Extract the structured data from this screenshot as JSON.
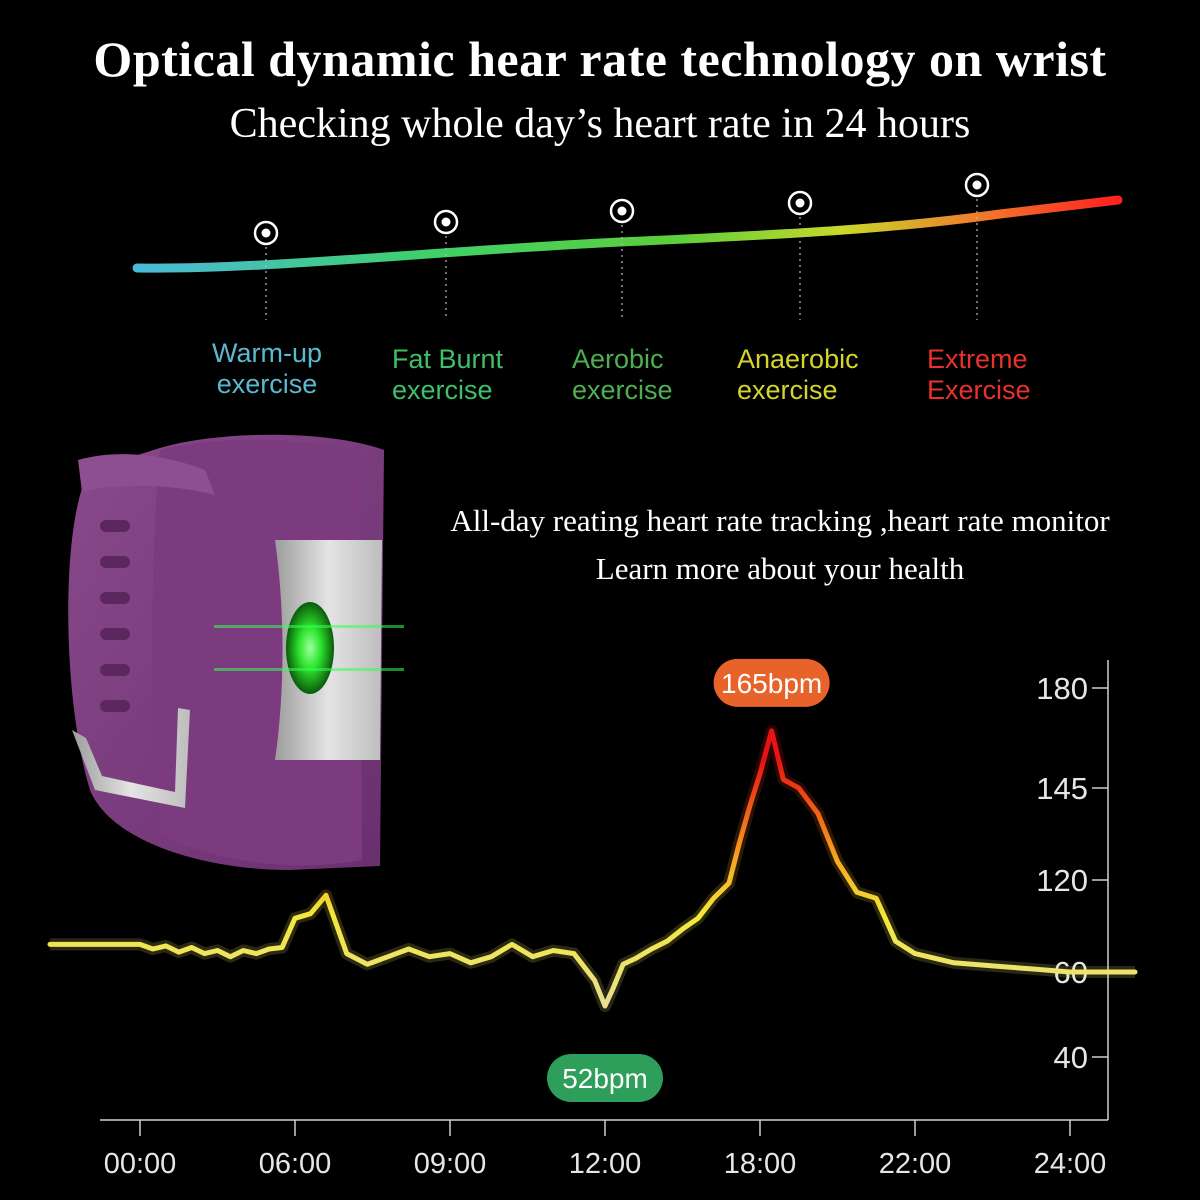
{
  "header": {
    "title": "Optical dynamic hear rate technology on wrist",
    "subtitle": "Checking whole day’s heart rate in 24 hours"
  },
  "zones": [
    {
      "line1": "Warm-up",
      "line2": "exercise",
      "color": "#5ab8d0"
    },
    {
      "line1": "Fat Burnt",
      "line2": "exercise",
      "color": "#3fbf6a"
    },
    {
      "line1": "Aerobic",
      "line2": "exercise",
      "color": "#4caf50"
    },
    {
      "line1": "Anaerobic",
      "line2": "exercise",
      "color": "#d4d42a"
    },
    {
      "line1": "Extreme",
      "line2": "Exercise",
      "color": "#e8322a"
    }
  ],
  "tagline": {
    "line1": "All-day reating heart rate tracking ,heart rate monitor",
    "line2": "Learn more about your health"
  },
  "chart_data": {
    "type": "line",
    "x_ticks": [
      "00:00",
      "06:00",
      "09:00",
      "12:00",
      "18:00",
      "22:00",
      "24:00"
    ],
    "y_ticks": [
      40,
      60,
      120,
      145,
      180
    ],
    "y_axis_side": "right",
    "series": [
      {
        "points": [
          [
            0,
            78
          ],
          [
            0.5,
            75
          ],
          [
            1,
            77
          ],
          [
            1.5,
            73
          ],
          [
            2,
            76
          ],
          [
            2.5,
            72
          ],
          [
            3,
            74
          ],
          [
            3.5,
            70
          ],
          [
            4,
            74
          ],
          [
            4.5,
            72
          ],
          [
            5,
            75
          ],
          [
            5.5,
            76
          ],
          [
            6,
            95
          ],
          [
            6.3,
            98
          ],
          [
            6.6,
            110
          ],
          [
            7,
            72
          ],
          [
            7.4,
            65
          ],
          [
            7.8,
            70
          ],
          [
            8.2,
            75
          ],
          [
            8.6,
            70
          ],
          [
            9,
            72
          ],
          [
            9.4,
            66
          ],
          [
            9.8,
            70
          ],
          [
            10.2,
            78
          ],
          [
            10.6,
            70
          ],
          [
            11,
            74
          ],
          [
            11.4,
            72
          ],
          [
            11.8,
            58
          ],
          [
            12,
            52
          ],
          [
            12.3,
            56
          ],
          [
            12.7,
            65
          ],
          [
            13.2,
            69
          ],
          [
            13.8,
            75
          ],
          [
            14.4,
            80
          ],
          [
            15,
            88
          ],
          [
            15.6,
            95
          ],
          [
            16.2,
            108
          ],
          [
            16.8,
            118
          ],
          [
            17.2,
            130
          ],
          [
            17.6,
            140
          ],
          [
            18,
            150
          ],
          [
            18.3,
            165
          ],
          [
            18.6,
            148
          ],
          [
            19,
            145
          ],
          [
            19.5,
            138
          ],
          [
            20,
            125
          ],
          [
            20.5,
            112
          ],
          [
            21,
            108
          ],
          [
            21.5,
            80
          ],
          [
            22,
            72
          ],
          [
            22.5,
            66
          ],
          [
            23,
            64
          ],
          [
            23.5,
            62
          ],
          [
            24,
            60
          ]
        ]
      }
    ],
    "annotations": [
      {
        "text": "165bpm",
        "x": 18.3,
        "y": 165,
        "color": "#e8632a"
      },
      {
        "text": "52bpm",
        "x": 12,
        "y": 52,
        "color": "#2e9e5b"
      }
    ]
  }
}
